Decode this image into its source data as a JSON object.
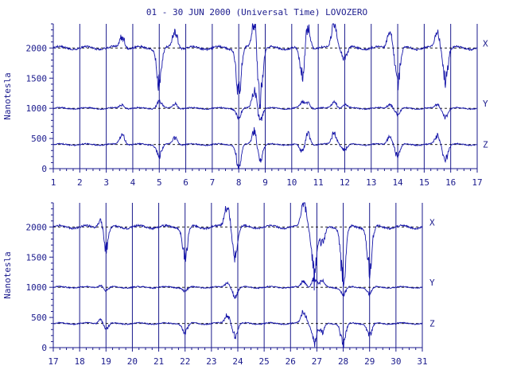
{
  "title": "01 - 30 JUN 2000 (Universal Time) LOVOZERO",
  "colors": {
    "ink": "#1a1a8c",
    "trace": "#1515a8",
    "baseline": "#000000"
  },
  "chart_data": [
    {
      "type": "line",
      "panel": "top",
      "ylabel": "Nanotesla",
      "xlim": [
        1,
        17
      ],
      "ylim": [
        0,
        2400
      ],
      "x_ticks": [
        1,
        2,
        3,
        4,
        5,
        6,
        7,
        8,
        9,
        10,
        11,
        12,
        13,
        14,
        15,
        16,
        17
      ],
      "y_ticks": [
        0,
        500,
        1000,
        1500,
        2000
      ],
      "grid": "vertical lines at each day",
      "series": [
        {
          "name": "X",
          "baseline": 2000
        },
        {
          "name": "Y",
          "baseline": 1000
        },
        {
          "name": "Z",
          "baseline": 400
        }
      ],
      "disturbances": [
        {
          "day": 3.6,
          "X": 200,
          "Y": 60,
          "Z": 180
        },
        {
          "day": 5.0,
          "X": -600,
          "Y": 130,
          "Z": -200
        },
        {
          "day": 5.6,
          "X": 300,
          "Y": 80,
          "Z": 120
        },
        {
          "day": 8.0,
          "X": -750,
          "Y": -150,
          "Z": -350
        },
        {
          "day": 8.6,
          "X": 500,
          "Y": 300,
          "Z": 250
        },
        {
          "day": 8.8,
          "X": -900,
          "Y": -200,
          "Z": -300
        },
        {
          "day": 10.4,
          "X": -500,
          "Y": 80,
          "Z": -150
        },
        {
          "day": 10.6,
          "X": 400,
          "Y": 100,
          "Z": 200
        },
        {
          "day": 11.6,
          "X": 500,
          "Y": 120,
          "Z": 200
        },
        {
          "day": 12.0,
          "X": -200,
          "Y": 60,
          "Z": -100
        },
        {
          "day": 13.7,
          "X": 300,
          "Y": 70,
          "Z": 150
        },
        {
          "day": 14.0,
          "X": -600,
          "Y": -100,
          "Z": -200
        },
        {
          "day": 15.5,
          "X": 250,
          "Y": 60,
          "Z": 150
        },
        {
          "day": 15.8,
          "X": -500,
          "Y": -150,
          "Z": -250
        }
      ]
    },
    {
      "type": "line",
      "panel": "bottom",
      "ylabel": "Nanotesla",
      "xlim": [
        17,
        31
      ],
      "ylim": [
        0,
        2400
      ],
      "x_ticks": [
        17,
        18,
        19,
        20,
        21,
        22,
        23,
        24,
        25,
        26,
        27,
        28,
        29,
        30,
        31
      ],
      "y_ticks": [
        0,
        500,
        1000,
        1500,
        2000
      ],
      "grid": "vertical lines at each day",
      "series": [
        {
          "name": "X",
          "baseline": 2000
        },
        {
          "name": "Y",
          "baseline": 1000
        },
        {
          "name": "Z",
          "baseline": 400
        }
      ],
      "disturbances": [
        {
          "day": 18.8,
          "X": 150,
          "Y": 40,
          "Z": 80
        },
        {
          "day": 19.0,
          "X": -350,
          "Y": -50,
          "Z": -100
        },
        {
          "day": 22.0,
          "X": -500,
          "Y": -60,
          "Z": -150
        },
        {
          "day": 23.6,
          "X": 400,
          "Y": 80,
          "Z": 150
        },
        {
          "day": 23.9,
          "X": -500,
          "Y": -150,
          "Z": -200
        },
        {
          "day": 26.5,
          "X": 450,
          "Y": 100,
          "Z": 200
        },
        {
          "day": 26.9,
          "X": -800,
          "Y": 150,
          "Z": -300
        },
        {
          "day": 27.2,
          "X": -300,
          "Y": 100,
          "Z": -150
        },
        {
          "day": 28.0,
          "X": -900,
          "Y": -120,
          "Z": -350
        },
        {
          "day": 29.0,
          "X": -700,
          "Y": -100,
          "Z": -200
        }
      ]
    }
  ]
}
